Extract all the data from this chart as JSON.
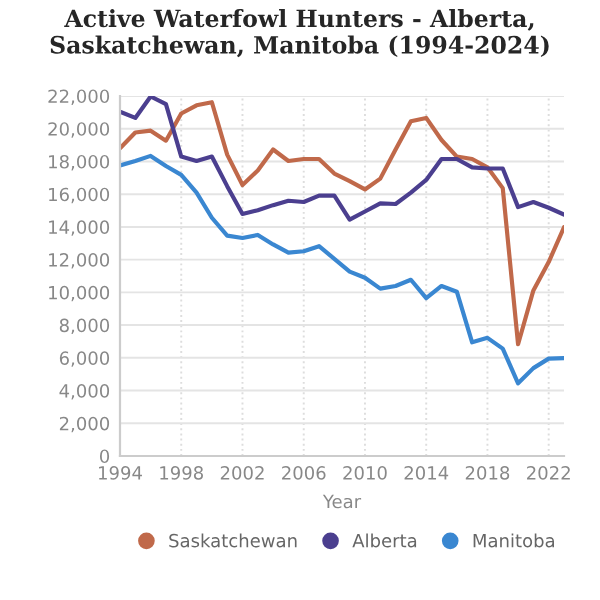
{
  "chart_data": {
    "type": "line",
    "title": "Active Waterfowl Hunters - Alberta, Saskatchewan, Manitoba (1994-2024)",
    "xlabel": "Year",
    "x": [
      1994,
      1995,
      1996,
      1997,
      1998,
      1999,
      2000,
      2001,
      2002,
      2003,
      2004,
      2005,
      2006,
      2007,
      2008,
      2009,
      2010,
      2011,
      2012,
      2013,
      2014,
      2015,
      2016,
      2017,
      2018,
      2019,
      2020,
      2021,
      2022,
      2023
    ],
    "series": [
      {
        "name": "Saskatchewan",
        "color": "#c0694a",
        "values": [
          18800,
          19770,
          19880,
          19270,
          20930,
          21430,
          21620,
          18420,
          16560,
          17450,
          18730,
          18030,
          18150,
          18150,
          17260,
          16800,
          16290,
          16950,
          18730,
          20460,
          20660,
          19310,
          18300,
          18150,
          17640,
          16370,
          6830,
          10120,
          11850,
          13980
        ]
      },
      {
        "name": "Alberta",
        "color": "#4b3f8f",
        "values": [
          21040,
          20660,
          21970,
          21500,
          18300,
          18030,
          18300,
          16490,
          14790,
          15020,
          15330,
          15600,
          15520,
          15910,
          15910,
          14440,
          14940,
          15440,
          15400,
          16100,
          16870,
          18150,
          18150,
          17640,
          17570,
          17570,
          15210,
          15520,
          15170,
          14750
        ]
      },
      {
        "name": "Manitoba",
        "color": "#3a87d1",
        "values": [
          17760,
          18030,
          18340,
          17720,
          17180,
          16100,
          14560,
          13470,
          13320,
          13510,
          12930,
          12430,
          12510,
          12820,
          12050,
          11270,
          10890,
          10230,
          10390,
          10770,
          9650,
          10390,
          10040,
          6950,
          7220,
          6560,
          4440,
          5370,
          5950,
          5980
        ]
      }
    ],
    "xlim": [
      1994,
      2023
    ],
    "xticks": [
      1994,
      1998,
      2002,
      2006,
      2010,
      2014,
      2018,
      2022
    ],
    "ylim": [
      0,
      22000
    ],
    "yticks": [
      {
        "value": 0,
        "label": "0"
      },
      {
        "value": 2000,
        "label": "2,000"
      },
      {
        "value": 4000,
        "label": "4,000"
      },
      {
        "value": 6000,
        "label": "6,000"
      },
      {
        "value": 8000,
        "label": "8,000"
      },
      {
        "value": 10000,
        "label": "10,000"
      },
      {
        "value": 12000,
        "label": "12,000"
      },
      {
        "value": 14000,
        "label": "14,000"
      },
      {
        "value": 16000,
        "label": "16,000"
      },
      {
        "value": 18000,
        "label": "18,000"
      },
      {
        "value": 20000,
        "label": "20,000"
      },
      {
        "value": 22000,
        "label": "22,000"
      }
    ],
    "grid": true,
    "legend": "bottom",
    "marker": "none",
    "line_style": "solid"
  }
}
